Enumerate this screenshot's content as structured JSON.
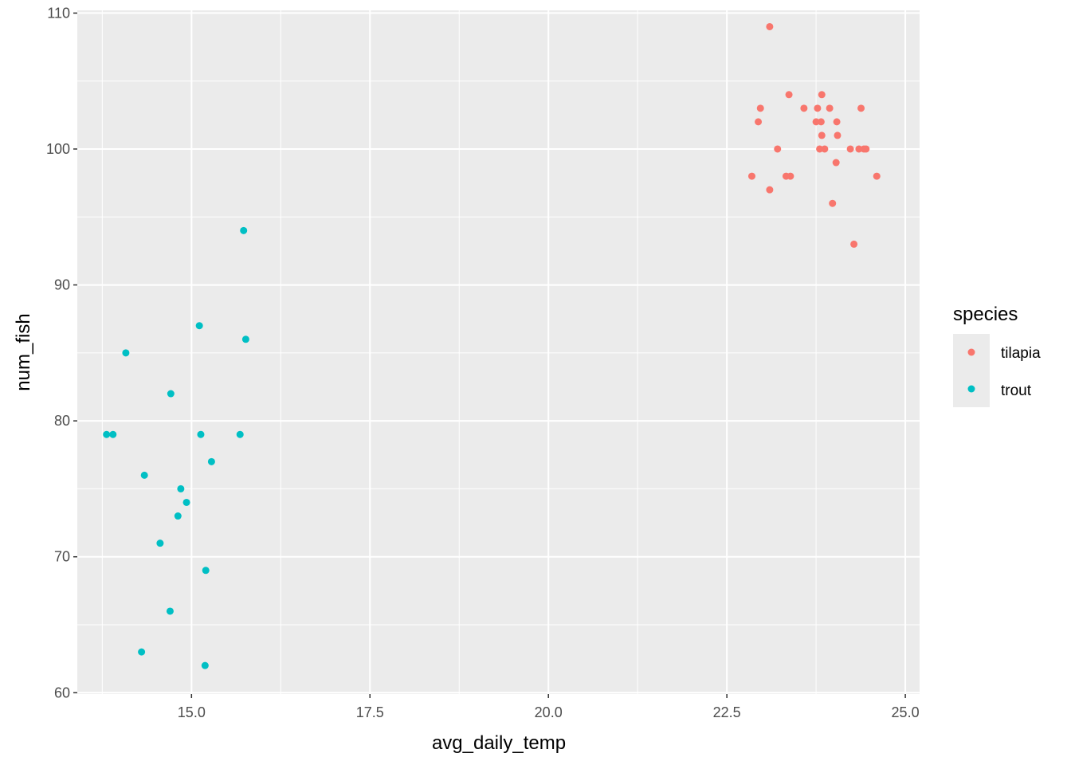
{
  "chart_data": {
    "type": "scatter",
    "xlabel": "avg_daily_temp",
    "ylabel": "num_fish",
    "xlim": [
      13.4,
      25.2
    ],
    "ylim": [
      59.9,
      110.2
    ],
    "x_ticks": [
      15.0,
      17.5,
      20.0,
      22.5,
      25.0
    ],
    "x_tick_labels": [
      "15.0",
      "17.5",
      "20.0",
      "22.5",
      "25.0"
    ],
    "y_ticks": [
      60,
      70,
      80,
      90,
      100,
      110
    ],
    "y_tick_labels": [
      "60",
      "70",
      "80",
      "90",
      "100",
      "110"
    ],
    "grid": true,
    "legend": {
      "title": "species",
      "placement": "right"
    },
    "series": [
      {
        "name": "tilapia",
        "color": "#F8766D",
        "points": [
          [
            23.1,
            109
          ],
          [
            23.37,
            104
          ],
          [
            23.83,
            104
          ],
          [
            22.97,
            103
          ],
          [
            23.58,
            103
          ],
          [
            23.77,
            103
          ],
          [
            23.94,
            103
          ],
          [
            24.38,
            103
          ],
          [
            22.94,
            102
          ],
          [
            23.75,
            102
          ],
          [
            23.82,
            102
          ],
          [
            24.04,
            102
          ],
          [
            23.83,
            101
          ],
          [
            24.05,
            101
          ],
          [
            23.21,
            100
          ],
          [
            23.8,
            100
          ],
          [
            23.87,
            100
          ],
          [
            24.23,
            100
          ],
          [
            24.35,
            100
          ],
          [
            24.42,
            100
          ],
          [
            24.45,
            100
          ],
          [
            24.03,
            99
          ],
          [
            22.85,
            98
          ],
          [
            23.33,
            98
          ],
          [
            23.39,
            98
          ],
          [
            24.6,
            98
          ],
          [
            23.1,
            97
          ],
          [
            23.98,
            96
          ],
          [
            24.28,
            93
          ]
        ]
      },
      {
        "name": "trout",
        "color": "#00BFC4",
        "points": [
          [
            15.73,
            94
          ],
          [
            15.11,
            87
          ],
          [
            15.76,
            86
          ],
          [
            14.08,
            85
          ],
          [
            14.71,
            82
          ],
          [
            13.81,
            79
          ],
          [
            13.9,
            79
          ],
          [
            15.13,
            79
          ],
          [
            15.68,
            79
          ],
          [
            15.28,
            77
          ],
          [
            14.34,
            76
          ],
          [
            14.85,
            75
          ],
          [
            14.93,
            74
          ],
          [
            14.81,
            73
          ],
          [
            14.56,
            71
          ],
          [
            15.2,
            69
          ],
          [
            14.7,
            66
          ],
          [
            14.3,
            63
          ],
          [
            15.19,
            62
          ]
        ]
      }
    ]
  }
}
